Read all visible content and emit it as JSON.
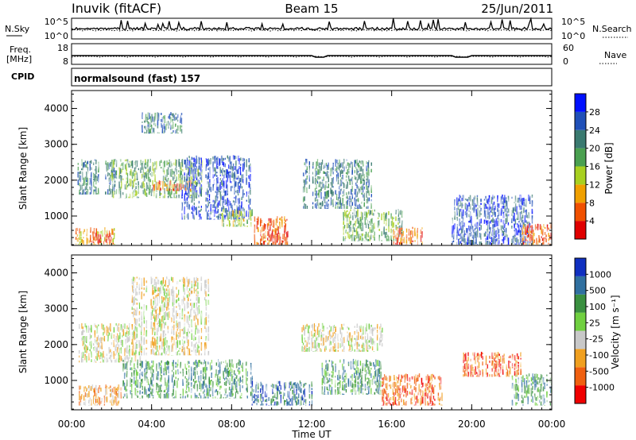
{
  "header": {
    "station": "Inuvik (fitACF)",
    "beam": "Beam 15",
    "date": "25/Jun/2011"
  },
  "noise_panel": {
    "left_label": "N.Sky",
    "left_ticks": [
      "10^5",
      "10^0"
    ],
    "right_label": "N.Search",
    "right_ticks": [
      "10^5",
      "10^0"
    ]
  },
  "freq_panel": {
    "left_label_1": "Freq.",
    "left_label_2": "[MHz]",
    "left_ticks": [
      "18",
      "8"
    ],
    "right_label": "Nave",
    "right_ticks": [
      "60",
      "0"
    ]
  },
  "cpid_panel": {
    "label": "CPID",
    "text": "normalsound (fast) 157"
  },
  "chart_data": [
    {
      "type": "heatmap",
      "name": "power-panel",
      "xlabel": "Time UT",
      "ylabel": "Slant Range [km]",
      "x_ticks": [
        "00:00",
        "04:00",
        "08:00",
        "12:00",
        "16:00",
        "20:00",
        "00:00"
      ],
      "xlim": [
        0,
        24
      ],
      "y_ticks": [
        "1000",
        "2000",
        "3000",
        "4000"
      ],
      "ylim": [
        180,
        4500
      ],
      "colorbar": {
        "label": "Power [dB]",
        "ticks": [
          "4",
          "8",
          "12",
          "16",
          "20",
          "24",
          "28"
        ],
        "colors": [
          "#0010ff",
          "#2050b8",
          "#3a7a70",
          "#4aa050",
          "#a8d020",
          "#f0a000",
          "#f05000",
          "#e00000"
        ]
      },
      "regions": [
        {
          "t0": 0.2,
          "t1": 2.2,
          "r0": 200,
          "r1": 700,
          "color": 5
        },
        {
          "t0": 1.0,
          "t1": 2.0,
          "r0": 250,
          "r1": 550,
          "color": 7
        },
        {
          "t0": 0.3,
          "t1": 2.3,
          "r0": 1600,
          "r1": 2600,
          "color": 2
        },
        {
          "t0": 2.0,
          "t1": 6.5,
          "r0": 1500,
          "r1": 2600,
          "color": 3
        },
        {
          "t0": 4.0,
          "t1": 6.0,
          "r0": 1700,
          "r1": 2000,
          "color": 6
        },
        {
          "t0": 3.5,
          "t1": 5.5,
          "r0": 3300,
          "r1": 3900,
          "color": 2
        },
        {
          "t0": 5.5,
          "t1": 9.0,
          "r0": 900,
          "r1": 2700,
          "color": 1
        },
        {
          "t0": 7.5,
          "t1": 9.0,
          "r0": 700,
          "r1": 1200,
          "color": 4
        },
        {
          "t0": 9.0,
          "t1": 10.8,
          "r0": 200,
          "r1": 1000,
          "color": 6
        },
        {
          "t0": 10.0,
          "t1": 10.8,
          "r0": 200,
          "r1": 600,
          "color": 7
        },
        {
          "t0": 11.5,
          "t1": 15.0,
          "r0": 1200,
          "r1": 2600,
          "color": 2
        },
        {
          "t0": 13.5,
          "t1": 16.5,
          "r0": 300,
          "r1": 1200,
          "color": 3
        },
        {
          "t0": 16.0,
          "t1": 17.5,
          "r0": 200,
          "r1": 700,
          "color": 6
        },
        {
          "t0": 19.0,
          "t1": 23.0,
          "r0": 200,
          "r1": 1600,
          "color": 1
        },
        {
          "t0": 22.5,
          "t1": 24.0,
          "r0": 200,
          "r1": 800,
          "color": 6
        }
      ]
    },
    {
      "type": "heatmap",
      "name": "velocity-panel",
      "xlabel": "Time UT",
      "ylabel": "Slant Range [km]",
      "x_ticks": [
        "00:00",
        "04:00",
        "08:00",
        "12:00",
        "16:00",
        "20:00",
        "00:00"
      ],
      "xlim": [
        0,
        24
      ],
      "y_ticks": [
        "1000",
        "2000",
        "3000",
        "4000"
      ],
      "ylim": [
        180,
        4500
      ],
      "colorbar": {
        "label": "Velocity [m s⁻¹]",
        "ticks": [
          "1000",
          "500",
          "100",
          "25",
          "-25",
          "-100",
          "-500",
          "-1000"
        ],
        "colors": [
          "#1030c0",
          "#3070a0",
          "#3a9040",
          "#70d040",
          "#c8c8c8",
          "#f0a020",
          "#f06010",
          "#f00000"
        ]
      },
      "regions": [
        {
          "t0": 0.3,
          "t1": 3.5,
          "r0": 1500,
          "r1": 2600,
          "color": 4
        },
        {
          "t0": 3.0,
          "t1": 7.0,
          "r0": 1700,
          "r1": 3900,
          "color": 4
        },
        {
          "t0": 0.3,
          "t1": 2.5,
          "r0": 300,
          "r1": 900,
          "color": 5
        },
        {
          "t0": 2.5,
          "t1": 9.0,
          "r0": 500,
          "r1": 1600,
          "color": 2
        },
        {
          "t0": 9.0,
          "t1": 12.0,
          "r0": 300,
          "r1": 1000,
          "color": 1
        },
        {
          "t0": 11.5,
          "t1": 15.5,
          "r0": 1800,
          "r1": 2600,
          "color": 4
        },
        {
          "t0": 12.5,
          "t1": 15.5,
          "r0": 600,
          "r1": 1600,
          "color": 2
        },
        {
          "t0": 15.5,
          "t1": 18.5,
          "r0": 300,
          "r1": 1200,
          "color": 6
        },
        {
          "t0": 19.5,
          "t1": 22.5,
          "r0": 1100,
          "r1": 1800,
          "color": 6
        },
        {
          "t0": 22.0,
          "t1": 24.0,
          "r0": 300,
          "r1": 1200,
          "color": 2
        }
      ]
    }
  ]
}
